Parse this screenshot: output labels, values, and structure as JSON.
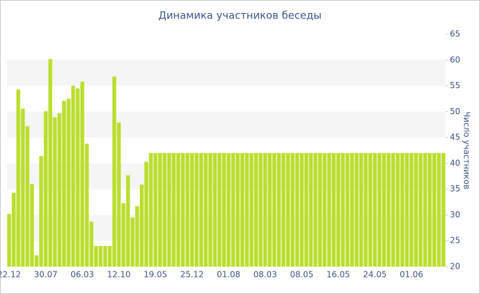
{
  "chart_data": {
    "type": "bar",
    "title": "Динамика участников беседы",
    "y_label": "Число участников",
    "categories": [
      "22.12",
      null,
      null,
      null,
      null,
      null,
      null,
      null,
      "30.07",
      null,
      null,
      null,
      null,
      null,
      null,
      null,
      "06.03",
      null,
      null,
      null,
      null,
      null,
      null,
      null,
      "12.10",
      null,
      null,
      null,
      null,
      null,
      null,
      null,
      "19.05",
      null,
      null,
      null,
      null,
      null,
      null,
      null,
      "25.12",
      null,
      null,
      null,
      null,
      null,
      null,
      null,
      "01.08",
      null,
      null,
      null,
      null,
      null,
      null,
      null,
      "08.03",
      null,
      null,
      null,
      null,
      null,
      null,
      null,
      "08.05",
      null,
      null,
      null,
      null,
      null,
      null,
      null,
      "16.05",
      null,
      null,
      null,
      null,
      null,
      null,
      null,
      "24.05",
      null,
      null,
      null,
      null,
      null,
      null,
      null,
      "01.06",
      null,
      null,
      null,
      null,
      null,
      null,
      null
    ],
    "values": [
      30.2,
      34.3,
      54.3,
      50.6,
      47.2,
      36,
      22.2,
      41.4,
      50.1,
      60.2,
      48.9,
      49.7,
      52.1,
      52.5,
      55,
      54.5,
      55.8,
      43.8,
      28.7,
      24,
      24,
      24,
      24,
      56.8,
      47.9,
      32.3,
      37.7,
      29.5,
      31.7,
      35.9,
      40.3,
      42,
      42,
      42,
      42,
      42,
      42,
      42,
      42,
      42,
      42,
      42,
      42,
      42,
      42,
      42,
      42,
      42,
      42,
      42,
      42,
      42,
      42,
      42,
      42,
      42,
      42,
      42,
      42,
      42,
      42,
      42,
      42,
      42,
      42,
      42,
      42,
      42,
      42,
      42,
      42,
      42,
      42,
      42,
      42,
      42,
      42,
      42,
      42,
      42,
      42,
      42,
      42,
      42,
      42,
      42,
      42,
      42,
      42,
      42,
      42,
      42,
      42,
      42,
      42,
      42
    ],
    "color": "#bade2f",
    "ylim": [
      20,
      65
    ],
    "yticks": [
      20,
      25,
      30,
      35,
      40,
      45,
      50,
      55,
      60,
      65
    ],
    "y_axis_side": "right",
    "bands": true
  }
}
